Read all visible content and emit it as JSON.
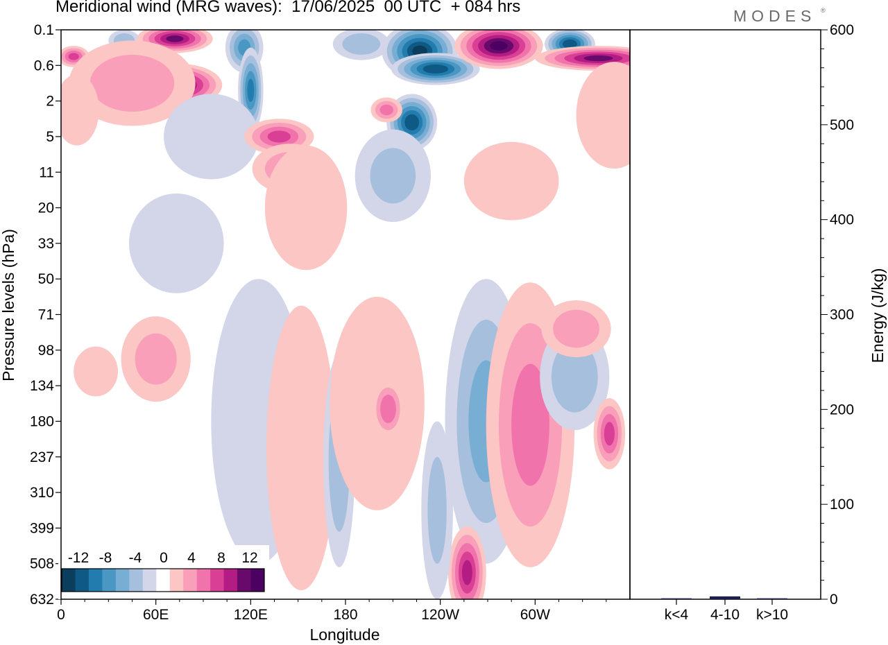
{
  "title": "Meridional wind (MRG waves):  17/06/2025  00 UTC  + 084 hrs",
  "logo": "MODES",
  "colors": {
    "-14": "#0b3d5c",
    "-12": "#0f5a85",
    "-10": "#237cae",
    "-8": "#4b97c4",
    "-6": "#78aed4",
    "-4": "#a5bfdc",
    "-2": "#d3d5e8",
    "0": "#ffffff",
    "2": "#fbc6c4",
    "4": "#f99fb9",
    "6": "#f073ab",
    "8": "#da3f96",
    "10": "#b31c83",
    "12": "#680a6c",
    "14": "#4b0062"
  },
  "chart_data": [
    {
      "type": "heatmap",
      "title": "Meridional wind (MRG waves):  17/06/2025  00 UTC  + 084 hrs",
      "xlabel": "Longitude",
      "ylabel": "Pressure levels (hPa)",
      "x_ticks": [
        "0",
        "60E",
        "120E",
        "180",
        "120W",
        "60W"
      ],
      "x_tick_degrees": [
        0,
        60,
        120,
        180,
        240,
        300
      ],
      "xlim": [
        0,
        360
      ],
      "y_ticks": [
        "0.1",
        "0.6",
        "2",
        "5",
        "11",
        "20",
        "33",
        "50",
        "71",
        "98",
        "134",
        "180",
        "237",
        "310",
        "399",
        "508",
        "632"
      ],
      "colorbar": {
        "labels": [
          "-12",
          "-8",
          "-4",
          "0",
          "4",
          "8",
          "12"
        ],
        "levels": [
          -14,
          -12,
          -10,
          -8,
          -6,
          -4,
          -2,
          0,
          2,
          4,
          6,
          8,
          10,
          12,
          14
        ]
      },
      "features": [
        {
          "lon": 8,
          "level": 1.5,
          "value": 8,
          "lon_width": 10,
          "level_height": 0.6
        },
        {
          "lon": 40,
          "level": 0.6,
          "value": -5,
          "lon_width": 10,
          "level_height": 0.6
        },
        {
          "lon": 72,
          "level": 0.5,
          "value": 12,
          "lon_width": 24,
          "level_height": 0.8
        },
        {
          "lon": 74,
          "level": 3.1,
          "value": 13,
          "lon_width": 28,
          "level_height": 1.2
        },
        {
          "lon": 45,
          "level": 3.0,
          "value": 5,
          "lon_width": 40,
          "level_height": 2.4
        },
        {
          "lon": 10,
          "level": 4.5,
          "value": 3,
          "lon_width": 14,
          "level_height": 2.0
        },
        {
          "lon": 116,
          "level": 1.0,
          "value": -8,
          "lon_width": 12,
          "level_height": 1.4
        },
        {
          "lon": 120,
          "level": 3.4,
          "value": -10,
          "lon_width": 8,
          "level_height": 2.4
        },
        {
          "lon": 95,
          "level": 6.0,
          "value": -2,
          "lon_width": 30,
          "level_height": 2.4
        },
        {
          "lon": 138,
          "level": 6.0,
          "value": 8,
          "lon_width": 22,
          "level_height": 1.0
        },
        {
          "lon": 145,
          "level": 7.8,
          "value": 5,
          "lon_width": 24,
          "level_height": 1.4
        },
        {
          "lon": 155,
          "level": 10.0,
          "value": 2,
          "lon_width": 26,
          "level_height": 3.5
        },
        {
          "lon": 190,
          "level": 0.8,
          "value": -5,
          "lon_width": 18,
          "level_height": 0.9
        },
        {
          "lon": 227,
          "level": 1.2,
          "value": -14,
          "lon_width": 24,
          "level_height": 1.6
        },
        {
          "lon": 237,
          "level": 2.2,
          "value": -13,
          "lon_width": 28,
          "level_height": 0.9
        },
        {
          "lon": 222,
          "level": 5.2,
          "value": -13,
          "lon_width": 16,
          "level_height": 1.6
        },
        {
          "lon": 206,
          "level": 4.5,
          "value": 6,
          "lon_width": 10,
          "level_height": 0.7
        },
        {
          "lon": 210,
          "level": 8.2,
          "value": -4,
          "lon_width": 24,
          "level_height": 2.6
        },
        {
          "lon": 277,
          "level": 0.9,
          "value": 14,
          "lon_width": 28,
          "level_height": 1.3
        },
        {
          "lon": 322,
          "level": 0.8,
          "value": -13,
          "lon_width": 16,
          "level_height": 0.9
        },
        {
          "lon": 340,
          "level": 1.6,
          "value": 12,
          "lon_width": 40,
          "level_height": 0.7
        },
        {
          "lon": 350,
          "level": 4.8,
          "value": 3,
          "lon_width": 24,
          "level_height": 3.0
        },
        {
          "lon": 285,
          "level": 8.5,
          "value": 3,
          "lon_width": 30,
          "level_height": 2.2
        },
        {
          "lon": 60,
          "level": 18.5,
          "value": 4,
          "lon_width": 22,
          "level_height": 2.4
        },
        {
          "lon": 22,
          "level": 19.2,
          "value": 2,
          "lon_width": 14,
          "level_height": 1.4
        },
        {
          "lon": 120,
          "level": 22.5,
          "value": -8,
          "lon_width": 12,
          "level_height": 3.4
        },
        {
          "lon": 125,
          "level": 22.0,
          "value": -2,
          "lon_width": 30,
          "level_height": 8.0
        },
        {
          "lon": 152,
          "level": 23.5,
          "value": 3,
          "lon_width": 22,
          "level_height": 8.0
        },
        {
          "lon": 176,
          "level": 24.2,
          "value": -5,
          "lon_width": 10,
          "level_height": 6.0
        },
        {
          "lon": 200,
          "level": 21.0,
          "value": 2,
          "lon_width": 30,
          "level_height": 6.0
        },
        {
          "lon": 207,
          "level": 21.3,
          "value": 7,
          "lon_width": 10,
          "level_height": 1.6
        },
        {
          "lon": 270,
          "level": 21.6,
          "value": -14,
          "lon_width": 16,
          "level_height": 4.4
        },
        {
          "lon": 269,
          "level": 22.0,
          "value": -6,
          "lon_width": 26,
          "level_height": 8.0
        },
        {
          "lon": 298,
          "level": 22.0,
          "value": 14,
          "lon_width": 18,
          "level_height": 4.4
        },
        {
          "lon": 297,
          "level": 22.2,
          "value": 6,
          "lon_width": 28,
          "level_height": 8.0
        },
        {
          "lon": 325,
          "level": 19.5,
          "value": -5,
          "lon_width": 22,
          "level_height": 3.0
        },
        {
          "lon": 347,
          "level": 22.7,
          "value": 8,
          "lon_width": 10,
          "level_height": 2.0
        },
        {
          "lon": 326,
          "level": 16.8,
          "value": 5,
          "lon_width": 22,
          "level_height": 1.6
        },
        {
          "lon": 257,
          "level": 30.5,
          "value": 10,
          "lon_width": 12,
          "level_height": 2.6
        },
        {
          "lon": 238,
          "level": 27.0,
          "value": -4,
          "lon_width": 10,
          "level_height": 5.0
        },
        {
          "lon": 73,
          "level": 12.0,
          "value": -2,
          "lon_width": 30,
          "level_height": 2.8
        }
      ]
    },
    {
      "type": "bar",
      "ylabel": "Energy (J/kg)",
      "categories": [
        "k<4",
        "4-10",
        "k>10"
      ],
      "values": [
        1,
        3,
        1
      ],
      "ylim": [
        0,
        600
      ],
      "y_ticks": [
        "0",
        "100",
        "200",
        "300",
        "400",
        "500",
        "600"
      ],
      "bar_color": "#1f1f4f"
    }
  ]
}
